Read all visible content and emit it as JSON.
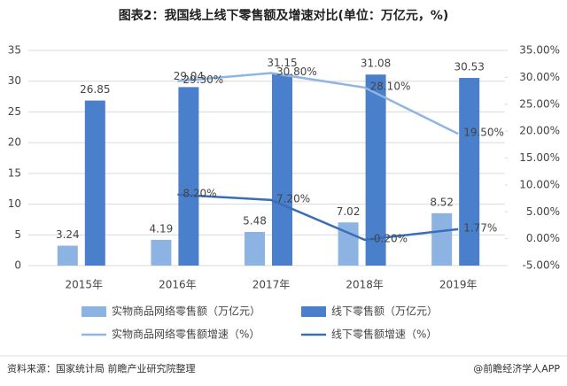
{
  "chart_data": {
    "type": "bar",
    "title": "图表2：我国线上线下零售额及增速对比(单位：万亿元，%)",
    "source": "资料来源：国家统计局 前瞻产业研究院整理",
    "credit": "@前瞻经济学人APP",
    "categories": [
      "2015年",
      "2016年",
      "2017年",
      "2018年",
      "2019年"
    ],
    "series": [
      {
        "name": "实物商品网络零售额（万亿元）",
        "type": "bar",
        "color": "#8db3e2",
        "values": [
          3.24,
          4.19,
          5.48,
          7.02,
          8.52
        ]
      },
      {
        "name": "线下零售额（万亿元）",
        "type": "bar",
        "color": "#4a7fcb",
        "values": [
          26.85,
          29.04,
          31.15,
          31.08,
          30.53
        ]
      },
      {
        "name": "实物商品网络零售额增速（%）",
        "type": "line",
        "axis": "y2",
        "color": "#8fb5e4",
        "values": [
          null,
          29.3,
          30.8,
          28.1,
          19.5
        ],
        "value_labels": [
          null,
          "29.30%",
          "30.80%",
          "28.10%",
          "19.50%"
        ]
      },
      {
        "name": "线下零售额增速（%）",
        "type": "line",
        "axis": "y2",
        "color": "#3a6db8",
        "values": [
          null,
          8.2,
          7.2,
          -0.2,
          1.77
        ],
        "value_labels": [
          null,
          "8.20%",
          "7.20%",
          "-0.20%",
          "1.77%"
        ]
      }
    ],
    "ylim": [
      0,
      35
    ],
    "yticks": [
      0,
      5,
      10,
      15,
      20,
      25,
      30,
      35
    ],
    "y2lim": [
      -5,
      35
    ],
    "y2ticks": [
      {
        "value": -5,
        "label": "-5.00%"
      },
      {
        "value": 0,
        "label": "0.00%"
      },
      {
        "value": 5,
        "label": "5.00%"
      },
      {
        "value": 10,
        "label": "10.00%"
      },
      {
        "value": 15,
        "label": "15.00%"
      },
      {
        "value": 20,
        "label": "20.00%"
      },
      {
        "value": 25,
        "label": "25.00%"
      },
      {
        "value": 30,
        "label": "30.00%"
      },
      {
        "value": 35,
        "label": "35.00%"
      }
    ],
    "grid": true
  }
}
